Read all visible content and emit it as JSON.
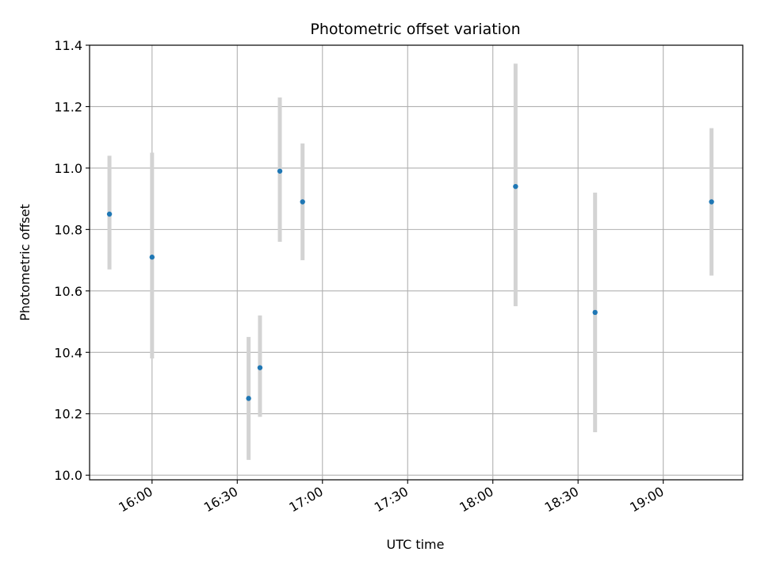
{
  "chart_data": {
    "type": "scatter",
    "title": "Photometric offset variation",
    "xlabel": "UTC time",
    "ylabel": "Photometric offset",
    "xlim": [
      "15:38",
      "19:28"
    ],
    "ylim": [
      9.985,
      11.4
    ],
    "x_ticks": [
      "16:00",
      "16:30",
      "17:00",
      "17:30",
      "18:00",
      "18:30",
      "19:00"
    ],
    "y_ticks": [
      10.0,
      10.2,
      10.4,
      10.6,
      10.8,
      11.0,
      11.2,
      11.4
    ],
    "y_tick_labels": [
      "10.0",
      "10.2",
      "10.4",
      "10.6",
      "10.8",
      "11.0",
      "11.2",
      "11.4"
    ],
    "grid": true,
    "colors": {
      "point": "#1f77b4",
      "errorbar": "#d3d3d3",
      "grid": "#b0b0b0"
    },
    "points": [
      {
        "x": "15:45",
        "y": 10.85,
        "low": 10.67,
        "high": 11.04
      },
      {
        "x": "16:00",
        "y": 10.71,
        "low": 10.38,
        "high": 11.05
      },
      {
        "x": "16:34",
        "y": 10.25,
        "low": 10.05,
        "high": 10.45
      },
      {
        "x": "16:38",
        "y": 10.35,
        "low": 10.19,
        "high": 10.52
      },
      {
        "x": "16:45",
        "y": 10.99,
        "low": 10.76,
        "high": 11.23
      },
      {
        "x": "16:53",
        "y": 10.89,
        "low": 10.7,
        "high": 11.08
      },
      {
        "x": "18:08",
        "y": 10.94,
        "low": 10.55,
        "high": 11.34
      },
      {
        "x": "18:36",
        "y": 10.53,
        "low": 10.14,
        "high": 10.92
      },
      {
        "x": "19:17",
        "y": 10.89,
        "low": 10.65,
        "high": 11.13
      }
    ]
  }
}
